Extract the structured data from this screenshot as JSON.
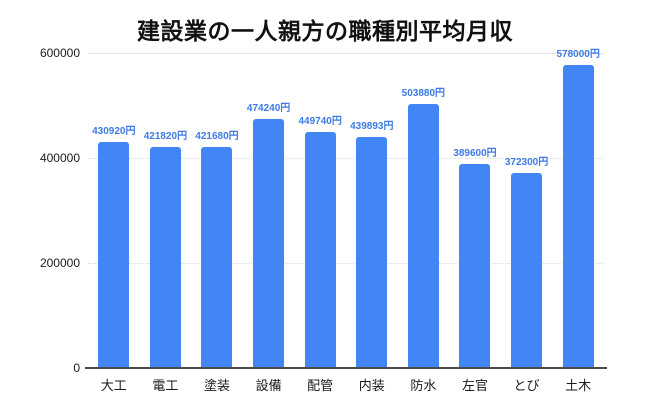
{
  "chart_data": {
    "type": "bar",
    "title": "建設業の一人親方の職種別平均月収",
    "categories": [
      "大工",
      "電工",
      "塗装",
      "設備",
      "配管",
      "内装",
      "防水",
      "左官",
      "とび",
      "土木"
    ],
    "values": [
      430920,
      421820,
      421680,
      474240,
      449740,
      439893,
      503880,
      389600,
      372300,
      578000
    ],
    "value_labels": [
      "430920円",
      "421820円",
      "421680円",
      "474240円",
      "449740円",
      "439893円",
      "503880円",
      "389600円",
      "372300円",
      "578000円"
    ],
    "unit_suffix": "円",
    "xlabel": "",
    "ylabel": "",
    "ylim": [
      0,
      600000
    ],
    "yticks": [
      0,
      200000,
      400000,
      600000
    ],
    "ytick_labels": [
      "0",
      "200000",
      "400000",
      "600000"
    ],
    "grid": true,
    "legend": "none",
    "colors": {
      "bar": "#4285f4",
      "value_label": "#3d7ae5",
      "axis_text": "#1a1a1a",
      "gridline": "#d7dce3",
      "top_gridline": "#e1e4e9",
      "axis_line": "#4a4a4a",
      "title": "#111111",
      "background": "#ffffff"
    }
  }
}
